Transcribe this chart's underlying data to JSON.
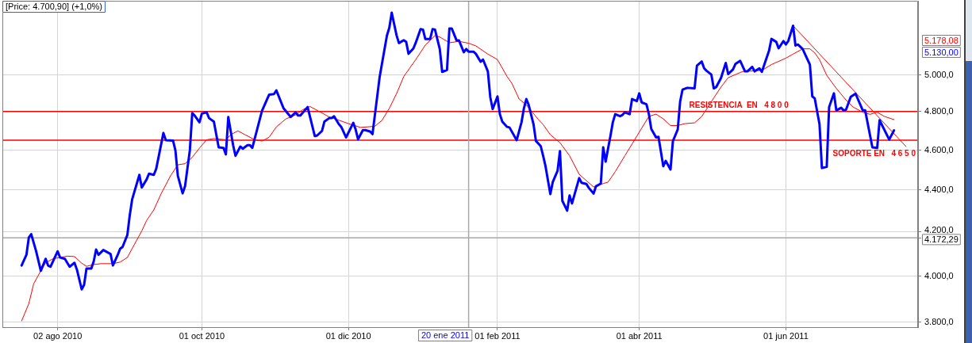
{
  "chart_data": {
    "type": "line",
    "title": "[Price: 4.700,90] (+1,0%)",
    "xlim": [
      "2010-07-10",
      "2011-07-26"
    ],
    "xticks": [
      {
        "value": "2010-08-02",
        "label": "02 ago 2010"
      },
      {
        "value": "2010-10-01",
        "label": "01 oct 2010"
      },
      {
        "value": "2010-12-01",
        "label": "01 dic 2010"
      },
      {
        "value": "2011-02-01",
        "label": "01 feb 2011"
      },
      {
        "value": "2011-04-01",
        "label": "01 abr 2011"
      },
      {
        "value": "2011-06-01",
        "label": "01 jun 2011"
      }
    ],
    "ylim": [
      3778,
      5428
    ],
    "yticks": [
      {
        "value": 3800,
        "label": "3.800,0"
      },
      {
        "value": 4000,
        "label": "4.000,0"
      },
      {
        "value": 4172.29,
        "label": "4.172,29"
      },
      {
        "value": 4200,
        "label": "4.200,0"
      },
      {
        "value": 4400,
        "label": "4.400,0"
      },
      {
        "value": 4600,
        "label": "4.600,0"
      },
      {
        "value": 4800,
        "label": "4.800,0"
      },
      {
        "value": 5000,
        "label": "5.000,0"
      }
    ],
    "log": "y",
    "grid": true,
    "marker": "none",
    "line_style": "solid",
    "series": [
      {
        "color": "#0000ff",
        "x": [
          "2010-07-18",
          "2010-07-20",
          "2010-07-21",
          "2010-07-22",
          "2010-07-24",
          "2010-07-26",
          "2010-07-28",
          "2010-07-29",
          "2010-07-30",
          "2010-08-02",
          "2010-08-03",
          "2010-08-05",
          "2010-08-07",
          "2010-08-09",
          "2010-08-10",
          "2010-08-12",
          "2010-08-13",
          "2010-08-14",
          "2010-08-16",
          "2010-08-17",
          "2010-08-18",
          "2010-08-19",
          "2010-08-21",
          "2010-08-24",
          "2010-08-25",
          "2010-08-27",
          "2010-08-28",
          "2010-08-29",
          "2010-08-31",
          "2010-09-01",
          "2010-09-02",
          "2010-09-05",
          "2010-09-06",
          "2010-09-08",
          "2010-09-09",
          "2010-09-11",
          "2010-09-12",
          "2010-09-13",
          "2010-09-15",
          "2010-09-16",
          "2010-09-19",
          "2010-09-20",
          "2010-09-21",
          "2010-09-23",
          "2010-09-24",
          "2010-09-26",
          "2010-09-27",
          "2010-09-28",
          "2010-09-30",
          "2010-10-01",
          "2010-10-03",
          "2010-10-04",
          "2010-10-06",
          "2010-10-08",
          "2010-10-10",
          "2010-10-11",
          "2010-10-12",
          "2010-10-14",
          "2010-10-15",
          "2010-10-17",
          "2010-10-18",
          "2010-10-20",
          "2010-10-21",
          "2010-10-22",
          "2010-10-26",
          "2010-10-29",
          "2010-10-31",
          "2010-11-01",
          "2010-11-04",
          "2010-11-07",
          "2010-11-09",
          "2010-11-10",
          "2010-11-11",
          "2010-11-14",
          "2010-11-17",
          "2010-11-18",
          "2010-11-20",
          "2010-11-21",
          "2010-11-23",
          "2010-11-24",
          "2010-11-25",
          "2010-11-27",
          "2010-11-28",
          "2010-11-30",
          "2010-12-03",
          "2010-12-04",
          "2010-12-05",
          "2010-12-07",
          "2010-12-08",
          "2010-12-10",
          "2010-12-11",
          "2010-12-14",
          "2010-12-17",
          "2010-12-18",
          "2010-12-19",
          "2010-12-21",
          "2010-12-22",
          "2010-12-24",
          "2010-12-25",
          "2010-12-26",
          "2010-12-28",
          "2010-12-29",
          "2010-12-31",
          "2011-01-01",
          "2011-01-02",
          "2011-01-04",
          "2011-01-05",
          "2011-01-06",
          "2011-01-08",
          "2011-01-09",
          "2011-01-11",
          "2011-01-12",
          "2011-01-13",
          "2011-01-15",
          "2011-01-16",
          "2011-01-18",
          "2011-01-19",
          "2011-01-20",
          "2011-01-22",
          "2011-01-23",
          "2011-01-25",
          "2011-01-26",
          "2011-01-28",
          "2011-01-29",
          "2011-01-30",
          "2011-02-01",
          "2011-02-02",
          "2011-02-03",
          "2011-02-05",
          "2011-02-06",
          "2011-02-09",
          "2011-02-11",
          "2011-02-12",
          "2011-02-13",
          "2011-02-14",
          "2011-02-16",
          "2011-02-17",
          "2011-02-19",
          "2011-02-20",
          "2011-02-21",
          "2011-02-23",
          "2011-02-24",
          "2011-02-26",
          "2011-02-27",
          "2011-02-28",
          "2011-03-02",
          "2011-03-03",
          "2011-03-04",
          "2011-03-07",
          "2011-03-08",
          "2011-03-10",
          "2011-03-11",
          "2011-03-13",
          "2011-03-14",
          "2011-03-16",
          "2011-03-17",
          "2011-03-18",
          "2011-03-20",
          "2011-03-21",
          "2011-03-22",
          "2011-03-24",
          "2011-03-25",
          "2011-03-26",
          "2011-03-28",
          "2011-03-29",
          "2011-03-31",
          "2011-04-01",
          "2011-04-02",
          "2011-04-04",
          "2011-04-05",
          "2011-04-06",
          "2011-04-08",
          "2011-04-09",
          "2011-04-11",
          "2011-04-12",
          "2011-04-14",
          "2011-04-15",
          "2011-04-17",
          "2011-04-18",
          "2011-04-19",
          "2011-04-21",
          "2011-04-24",
          "2011-04-25",
          "2011-04-27",
          "2011-04-28",
          "2011-04-29",
          "2011-05-01",
          "2011-05-02",
          "2011-05-03",
          "2011-05-05",
          "2011-05-07",
          "2011-05-08",
          "2011-05-10",
          "2011-05-11",
          "2011-05-13",
          "2011-05-15",
          "2011-05-16",
          "2011-05-18",
          "2011-05-19",
          "2011-05-21",
          "2011-05-22",
          "2011-05-25",
          "2011-05-26",
          "2011-05-28",
          "2011-05-29",
          "2011-05-31",
          "2011-06-01",
          "2011-06-02",
          "2011-06-04",
          "2011-06-05",
          "2011-06-06",
          "2011-06-08",
          "2011-06-11",
          "2011-06-12",
          "2011-06-13",
          "2011-06-15",
          "2011-06-16",
          "2011-06-18",
          "2011-06-19",
          "2011-06-21",
          "2011-06-22",
          "2011-06-24",
          "2011-06-25",
          "2011-06-26",
          "2011-06-28",
          "2011-06-30",
          "2011-07-03",
          "2011-07-04",
          "2011-07-07",
          "2011-07-09",
          "2011-07-10",
          "2011-07-14",
          "2011-07-16"
        ],
        "values": [
          4046,
          4094,
          4173,
          4189,
          4112,
          4022,
          4076,
          4046,
          4040,
          4110,
          4082,
          4076,
          4040,
          4058,
          4028,
          3940,
          3960,
          4032,
          4032,
          4064,
          4118,
          4094,
          4116,
          4098,
          4046,
          4094,
          4122,
          4130,
          4185,
          4278,
          4354,
          4474,
          4412,
          4451,
          4480,
          4474,
          4504,
          4564,
          4687,
          4650,
          4648,
          4597,
          4470,
          4383,
          4418,
          4597,
          4792,
          4779,
          4743,
          4789,
          4796,
          4765,
          4747,
          4613,
          4610,
          4577,
          4771,
          4624,
          4570,
          4617,
          4606,
          4624,
          4624,
          4610,
          4803,
          4891,
          4894,
          4914,
          4817,
          4771,
          4796,
          4779,
          4779,
          4824,
          4671,
          4674,
          4698,
          4747,
          4765,
          4765,
          4775,
          4733,
          4719,
          4664,
          4740,
          4705,
          4654,
          4702,
          4702,
          4695,
          4681,
          4990,
          5222,
          5268,
          5357,
          5225,
          5179,
          5196,
          5187,
          5118,
          5148,
          5181,
          5260,
          5257,
          5202,
          5203,
          5260,
          5257,
          5145,
          5016,
          5027,
          5263,
          5263,
          5194,
          5194,
          5127,
          5145,
          5130,
          5130,
          5118,
          5073,
          5085,
          5019,
          4878,
          4813,
          4881,
          4786,
          4747,
          4719,
          4716,
          4650,
          4743,
          4817,
          4867,
          4835,
          4733,
          4646,
          4619,
          4570,
          4517,
          4380,
          4438,
          4494,
          4594,
          4347,
          4300,
          4373,
          4334,
          4458,
          4435,
          4429,
          4410,
          4382,
          4418,
          4431,
          4613,
          4540,
          4671,
          4743,
          4786,
          4775,
          4782,
          4796,
          4786,
          4867,
          4856,
          4898,
          4849,
          4839,
          4786,
          4708,
          4664,
          4667,
          4517,
          4544,
          4501,
          4645,
          4705,
          4853,
          4918,
          4928,
          4925,
          5051,
          5074,
          5036,
          5022,
          5001,
          4925,
          4932,
          4982,
          5066,
          5004,
          5030,
          5060,
          5078,
          5019,
          5019,
          5044,
          5019,
          5036,
          5016,
          5135,
          5203,
          5186,
          5149,
          5191,
          5171,
          5191,
          5280,
          5165,
          5171,
          5145,
          5056,
          4881,
          4871,
          4733,
          4508,
          4514,
          4824,
          4898,
          4806,
          4820,
          4806,
          4809,
          4879,
          4896,
          4806,
          4806,
          4613,
          4610,
          4754,
          4653,
          4700.9
        ]
      },
      {
        "color": "#ff0000",
        "x": [
          "2010-07-18",
          "2010-07-21",
          "2010-07-23",
          "2010-07-26",
          "2010-07-28",
          "2010-07-31",
          "2010-08-03",
          "2010-08-06",
          "2010-08-09",
          "2010-08-12",
          "2010-08-14",
          "2010-08-17",
          "2010-08-20",
          "2010-08-25",
          "2010-08-28",
          "2010-08-31",
          "2010-09-03",
          "2010-09-06",
          "2010-09-08",
          "2010-09-11",
          "2010-09-14",
          "2010-09-18",
          "2010-09-21",
          "2010-09-24",
          "2010-09-27",
          "2010-09-30",
          "2010-10-03",
          "2010-10-06",
          "2010-10-11",
          "2010-10-13",
          "2010-10-16",
          "2010-10-19",
          "2010-10-23",
          "2010-10-26",
          "2010-10-29",
          "2010-11-01",
          "2010-11-05",
          "2010-11-09",
          "2010-11-12",
          "2010-11-15",
          "2010-11-19",
          "2010-11-23",
          "2010-11-27",
          "2010-12-01",
          "2010-12-06",
          "2010-12-12",
          "2010-12-15",
          "2010-12-18",
          "2010-12-21",
          "2010-12-24",
          "2010-12-29",
          "2011-01-02",
          "2011-01-06",
          "2011-01-08",
          "2011-01-12",
          "2011-01-16",
          "2011-01-20",
          "2011-01-23",
          "2011-01-28",
          "2011-02-01",
          "2011-02-05",
          "2011-02-07",
          "2011-02-10",
          "2011-02-13",
          "2011-02-18",
          "2011-02-20",
          "2011-02-23",
          "2011-02-27",
          "2011-03-03",
          "2011-03-07",
          "2011-03-13",
          "2011-03-17",
          "2011-03-19",
          "2011-03-22",
          "2011-03-26",
          "2011-03-29",
          "2011-04-02",
          "2011-04-05",
          "2011-04-08",
          "2011-04-11",
          "2011-04-14",
          "2011-04-17",
          "2011-04-20",
          "2011-04-24",
          "2011-04-27",
          "2011-04-30",
          "2011-05-02",
          "2011-05-05",
          "2011-05-08",
          "2011-05-14",
          "2011-05-22",
          "2011-05-26",
          "2011-06-01",
          "2011-06-04",
          "2011-06-08",
          "2011-06-11",
          "2011-06-13",
          "2011-06-15",
          "2011-06-18",
          "2011-06-22",
          "2011-06-26",
          "2011-06-29",
          "2011-07-03",
          "2011-07-06",
          "2011-07-09",
          "2011-07-12",
          "2011-07-16"
        ],
        "values": [
          3804,
          3878,
          3964,
          4022,
          4058,
          4076,
          4082,
          4088,
          4086,
          4056,
          4042,
          4050,
          4054,
          4054,
          4061,
          4082,
          4143,
          4204,
          4253,
          4303,
          4380,
          4470,
          4524,
          4530,
          4562,
          4609,
          4652,
          4658,
          4652,
          4678,
          4698,
          4678,
          4652,
          4645,
          4665,
          4719,
          4761,
          4782,
          4810,
          4827,
          4799,
          4771,
          4754,
          4736,
          4716,
          4722,
          4754,
          4817,
          4896,
          4990,
          5085,
          5168,
          5222,
          5214,
          5181,
          5189,
          5178.08,
          5163,
          5116,
          5085,
          4990,
          4953,
          4867,
          4836,
          4758,
          4731,
          4678,
          4637,
          4570,
          4477,
          4414,
          4431,
          4438,
          4490,
          4570,
          4630,
          4712,
          4774,
          4786,
          4761,
          4726,
          4726,
          4736,
          4740,
          4774,
          4832,
          4873,
          4932,
          4984,
          5018,
          5024,
          5057,
          5093,
          5116,
          5146,
          5146,
          5123,
          5085,
          4997,
          4925,
          4862,
          4824,
          4796,
          4785,
          4796,
          4774,
          4757
        ]
      },
      {
        "type": "line",
        "color": "#ff0000",
        "x": [
          "2011-06-04",
          "2011-07-21"
        ],
        "values": [
          5280,
          4617
        ]
      }
    ],
    "ref_lines": [
      {
        "axis": "y",
        "value": 4800,
        "label": "RESISTENCIA  EN   4 8 0 0",
        "color": "#ff0000"
      },
      {
        "axis": "y",
        "value": 4650,
        "label": "SOPORTE EN   4 6 5 0",
        "color": "#ff0000"
      },
      {
        "axis": "x",
        "value": "2011-01-20",
        "label": "20 ene 2011",
        "color": "#a8a8a8"
      },
      {
        "axis": "y",
        "value": 4172.29,
        "color": "#a8a8a8"
      }
    ],
    "annotations": [
      "5.130,00",
      "5.178,08"
    ]
  }
}
